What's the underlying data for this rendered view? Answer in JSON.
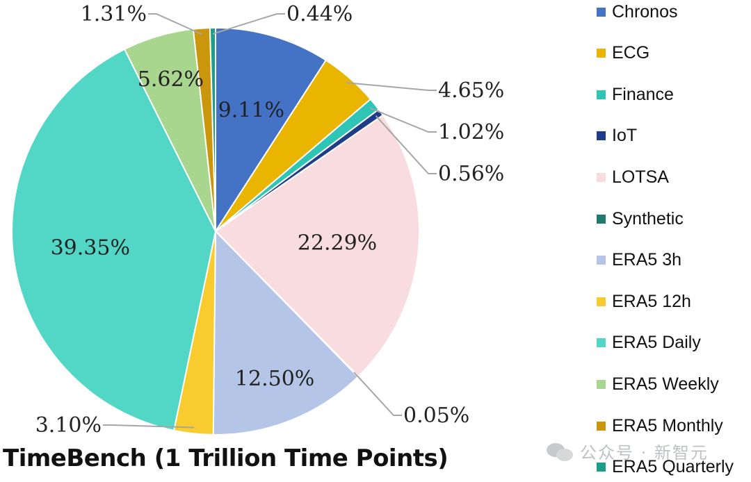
{
  "chart_data": {
    "type": "pie",
    "title": "TimeBench (1 Trillion Time Points)",
    "legend_position": "right",
    "slices": [
      {
        "label": "Chronos",
        "value": 9.11,
        "display": "9.11%",
        "color": "#4472C4"
      },
      {
        "label": "ECG",
        "value": 4.65,
        "display": "4.65%",
        "color": "#E9B500"
      },
      {
        "label": "Finance",
        "value": 1.02,
        "display": "1.02%",
        "color": "#2EC4B6"
      },
      {
        "label": "IoT",
        "value": 0.56,
        "display": "0.56%",
        "color": "#1F3C88"
      },
      {
        "label": "LOTSA",
        "value": 22.29,
        "display": "22.29%",
        "color": "#F8DCE0"
      },
      {
        "label": "Synthetic",
        "value": 0.05,
        "display": "0.05%",
        "color": "#1E7B6E"
      },
      {
        "label": "ERA5 3h",
        "value": 12.5,
        "display": "12.50%",
        "color": "#B4C5E8"
      },
      {
        "label": "ERA5 12h",
        "value": 3.1,
        "display": "3.10%",
        "color": "#F8CB2E"
      },
      {
        "label": "ERA5 Daily",
        "value": 39.35,
        "display": "39.35%",
        "color": "#52D6C5"
      },
      {
        "label": "ERA5 Weekly",
        "value": 5.62,
        "display": "5.62%",
        "color": "#A8D68F"
      },
      {
        "label": "ERA5 Monthly",
        "value": 1.31,
        "display": "1.31%",
        "color": "#C9960C"
      },
      {
        "label": "ERA5 Quarterly",
        "value": 0.44,
        "display": "0.44%",
        "color": "#1E9C8C"
      }
    ]
  },
  "watermark": {
    "text": "公众号 · 新智元"
  }
}
